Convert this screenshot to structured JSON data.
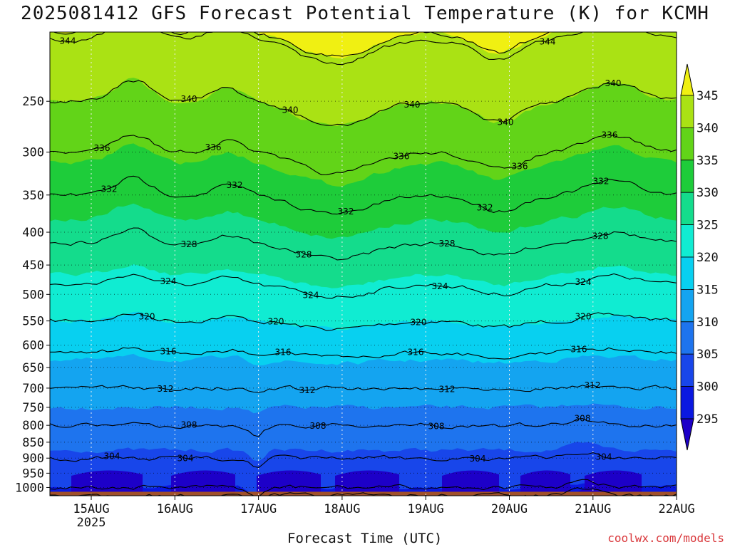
{
  "title": "2025081412 GFS Forecast Potential Temperature (K) for KCMH",
  "credit": "coolwx.com/models",
  "chart_data": {
    "type": "heatmap",
    "title": "2025081412 GFS Forecast Potential Temperature (K) for KCMH",
    "xlabel": "Forecast Time (UTC)",
    "ylabel": "",
    "x_ticks": [
      {
        "label": "15AUG",
        "sublabel": "2025"
      },
      {
        "label": "16AUG",
        "sublabel": ""
      },
      {
        "label": "17AUG",
        "sublabel": ""
      },
      {
        "label": "18AUG",
        "sublabel": ""
      },
      {
        "label": "19AUG",
        "sublabel": ""
      },
      {
        "label": "20AUG",
        "sublabel": ""
      },
      {
        "label": "21AUG",
        "sublabel": ""
      },
      {
        "label": "22AUG",
        "sublabel": ""
      }
    ],
    "x_range_days": [
      -0.5,
      7
    ],
    "y_axis": "pressure (hPa), reversed",
    "y_range": [
      1030,
      195
    ],
    "y_ticks": [
      250,
      300,
      350,
      400,
      450,
      500,
      550,
      600,
      650,
      700,
      750,
      800,
      850,
      900,
      950,
      1000
    ],
    "colorbar": {
      "levels": [
        295,
        300,
        305,
        310,
        315,
        320,
        325,
        330,
        335,
        340,
        345
      ],
      "labels": [
        "345",
        "340",
        "335",
        "330",
        "325",
        "320",
        "315",
        "310",
        "305",
        "300",
        "295"
      ],
      "colors": [
        "#1d00c8",
        "#0a18e0",
        "#1846ea",
        "#1e74ee",
        "#14a4f0",
        "#08d0f0",
        "#10ecd2",
        "#14dc8c",
        "#1ecc3a",
        "#62d418",
        "#aae214",
        "#f0f012"
      ]
    },
    "contour_interval": 4,
    "contour_labels": [
      "344",
      "340",
      "336",
      "332",
      "328",
      "324",
      "320",
      "316",
      "312",
      "308",
      "304"
    ],
    "profile_mean": [
      {
        "p": 1000,
        "theta": 300
      },
      {
        "p": 950,
        "theta": 302
      },
      {
        "p": 900,
        "theta": 304
      },
      {
        "p": 850,
        "theta": 306
      },
      {
        "p": 800,
        "theta": 308
      },
      {
        "p": 750,
        "theta": 310
      },
      {
        "p": 700,
        "theta": 312
      },
      {
        "p": 650,
        "theta": 314
      },
      {
        "p": 600,
        "theta": 317
      },
      {
        "p": 550,
        "theta": 320
      },
      {
        "p": 500,
        "theta": 323
      },
      {
        "p": 450,
        "theta": 326
      },
      {
        "p": 400,
        "theta": 329
      },
      {
        "p": 350,
        "theta": 332
      },
      {
        "p": 300,
        "theta": 336
      },
      {
        "p": 250,
        "theta": 340
      },
      {
        "p": 200,
        "theta": 344
      }
    ],
    "ground_color": "#a0502a"
  }
}
